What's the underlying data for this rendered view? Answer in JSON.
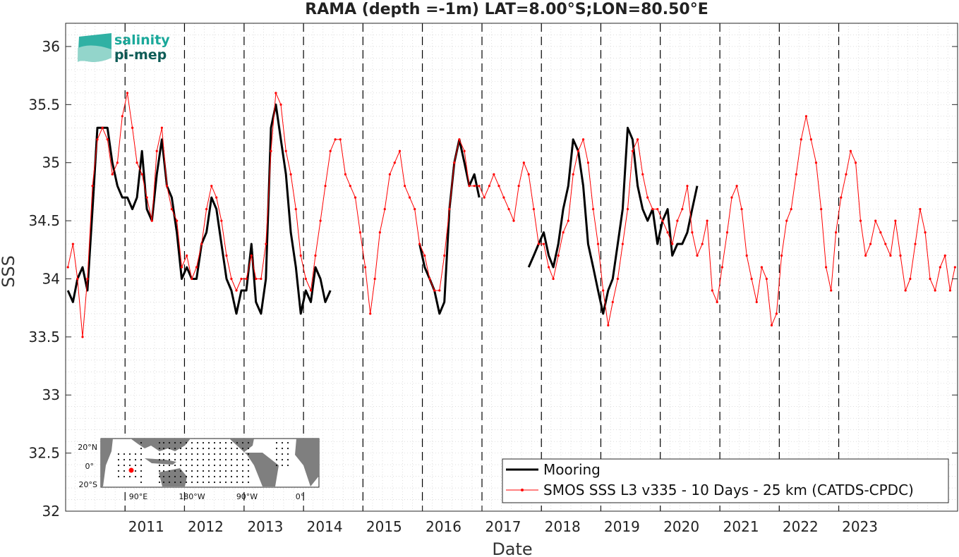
{
  "chart_data": {
    "type": "line",
    "title": "RAMA (depth =-1m) LAT=8.00°S;LON=80.50°E",
    "xlabel": "Date",
    "ylabel": "SSS",
    "xlim": [
      "2010-01-01",
      "2024-12-31"
    ],
    "ylim": [
      32,
      36.2
    ],
    "yticks": [
      "32",
      "32.5",
      "33",
      "33.5",
      "34",
      "34.5",
      "35",
      "35.5",
      "36"
    ],
    "xticks": [
      "2011",
      "2012",
      "2013",
      "2014",
      "2015",
      "2016",
      "2017",
      "2018",
      "2019",
      "2020",
      "2021",
      "2022",
      "2023"
    ],
    "year_boundaries": [
      "2011-01-01",
      "2012-01-01",
      "2013-01-01",
      "2014-01-01",
      "2015-01-01",
      "2016-01-01",
      "2017-01-01",
      "2018-01-01",
      "2019-01-01",
      "2020-01-01",
      "2021-01-01",
      "2022-01-01",
      "2023-01-01"
    ],
    "grid": "minor dotted",
    "legend_position": "bottom-right",
    "series": [
      {
        "name": "Mooring",
        "color": "#000000",
        "style": "thick line",
        "x": [
          "2010-01",
          "2010-02",
          "2010-03",
          "2010-04",
          "2010-05",
          "2010-06",
          "2010-07",
          "2010-08",
          "2010-09",
          "2010-10",
          "2010-11",
          "2010-12",
          "2011-01",
          "2011-02",
          "2011-03",
          "2011-04",
          "2011-05",
          "2011-06",
          "2011-07",
          "2011-08",
          "2011-09",
          "2011-10",
          "2011-11",
          "2011-12",
          "2012-01",
          "2012-02",
          "2012-03",
          "2012-04",
          "2012-05",
          "2012-06",
          "2012-07",
          "2012-08",
          "2012-09",
          "2012-10",
          "2012-11",
          "2012-12",
          "2013-01",
          "2013-02",
          "2013-03",
          "2013-04",
          "2013-05",
          "2013-06",
          "2013-07",
          "2013-08",
          "2013-09",
          "2013-10",
          "2013-11",
          "2013-12",
          "2014-01",
          "2014-02",
          "2014-03",
          "2014-04",
          "2014-05",
          "2014-06",
          null,
          "2015-12",
          "2016-01",
          "2016-02",
          "2016-03",
          "2016-04",
          "2016-05",
          "2016-06",
          "2016-07",
          "2016-08",
          "2016-09",
          "2016-10",
          "2016-11",
          "2016-12",
          null,
          "2017-10",
          "2017-11",
          "2017-12",
          "2018-01",
          "2018-02",
          "2018-03",
          "2018-04",
          "2018-05",
          "2018-06",
          "2018-07",
          "2018-08",
          "2018-09",
          "2018-10",
          "2018-11",
          "2018-12",
          "2019-01",
          "2019-02",
          "2019-03",
          "2019-04",
          "2019-05",
          "2019-06",
          "2019-07",
          "2019-08",
          "2019-09",
          "2019-10",
          "2019-11",
          "2019-12",
          "2020-01",
          "2020-02",
          "2020-03",
          "2020-04",
          "2020-05",
          "2020-06",
          "2020-07",
          "2020-08"
        ],
        "y": [
          33.9,
          33.8,
          34.0,
          34.1,
          33.9,
          34.6,
          35.3,
          35.3,
          35.3,
          35.0,
          34.8,
          34.7,
          34.7,
          34.6,
          34.7,
          35.1,
          34.6,
          34.5,
          34.9,
          35.2,
          34.8,
          34.7,
          34.4,
          34.0,
          34.1,
          34.0,
          34.0,
          34.3,
          34.4,
          34.7,
          34.6,
          34.3,
          34.0,
          33.9,
          33.7,
          33.9,
          33.9,
          34.3,
          33.8,
          33.7,
          34.0,
          35.3,
          35.5,
          35.2,
          34.9,
          34.4,
          34.1,
          33.7,
          33.9,
          33.8,
          34.1,
          34.0,
          33.8,
          33.9,
          null,
          34.3,
          34.1,
          34.0,
          33.9,
          33.7,
          33.8,
          34.6,
          35.0,
          35.2,
          35.0,
          34.8,
          34.9,
          34.7,
          null,
          34.1,
          34.2,
          34.3,
          34.4,
          34.2,
          34.1,
          34.3,
          34.6,
          34.8,
          35.2,
          35.1,
          34.8,
          34.3,
          34.1,
          33.9,
          33.7,
          33.9,
          34.0,
          34.3,
          34.6,
          35.3,
          35.2,
          34.8,
          34.6,
          34.5,
          34.6,
          34.3,
          34.5,
          34.6,
          34.2,
          34.3,
          34.3,
          34.4,
          34.6,
          34.8
        ]
      },
      {
        "name": "SMOS SSS L3 v335 - 10 Days - 25 km (CATDS-CPDC)",
        "color": "#ff0000",
        "style": "thin line with dot markers",
        "x": [
          "2010-01",
          "2010-02",
          "2010-03",
          "2010-04",
          "2010-05",
          "2010-06",
          "2010-07",
          "2010-08",
          "2010-09",
          "2010-10",
          "2010-11",
          "2010-12",
          "2011-01",
          "2011-02",
          "2011-03",
          "2011-04",
          "2011-05",
          "2011-06",
          "2011-07",
          "2011-08",
          "2011-09",
          "2011-10",
          "2011-11",
          "2011-12",
          "2012-01",
          "2012-02",
          "2012-03",
          "2012-04",
          "2012-05",
          "2012-06",
          "2012-07",
          "2012-08",
          "2012-09",
          "2012-10",
          "2012-11",
          "2012-12",
          "2013-01",
          "2013-02",
          "2013-03",
          "2013-04",
          "2013-05",
          "2013-06",
          "2013-07",
          "2013-08",
          "2013-09",
          "2013-10",
          "2013-11",
          "2013-12",
          "2014-01",
          "2014-02",
          "2014-03",
          "2014-04",
          "2014-05",
          "2014-06",
          "2014-07",
          "2014-08",
          "2014-09",
          "2014-10",
          "2014-11",
          "2014-12",
          "2015-01",
          "2015-02",
          "2015-03",
          "2015-04",
          "2015-05",
          "2015-06",
          "2015-07",
          "2015-08",
          "2015-09",
          "2015-10",
          "2015-11",
          "2015-12",
          "2016-01",
          "2016-02",
          "2016-03",
          "2016-04",
          "2016-05",
          "2016-06",
          "2016-07",
          "2016-08",
          "2016-09",
          "2016-10",
          "2016-11",
          "2016-12",
          "2017-01",
          "2017-02",
          "2017-03",
          "2017-04",
          "2017-05",
          "2017-06",
          "2017-07",
          "2017-08",
          "2017-09",
          "2017-10",
          "2017-11",
          "2017-12",
          "2018-01",
          "2018-02",
          "2018-03",
          "2018-04",
          "2018-05",
          "2018-06",
          "2018-07",
          "2018-08",
          "2018-09",
          "2018-10",
          "2018-11",
          "2018-12",
          "2019-01",
          "2019-02",
          "2019-03",
          "2019-04",
          "2019-05",
          "2019-06",
          "2019-07",
          "2019-08",
          "2019-09",
          "2019-10",
          "2019-11",
          "2019-12",
          "2020-01",
          "2020-02",
          "2020-03",
          "2020-04",
          "2020-05",
          "2020-06",
          "2020-07",
          "2020-08",
          "2020-09",
          "2020-10",
          "2020-11",
          "2020-12",
          "2021-01",
          "2021-02",
          "2021-03",
          "2021-04",
          "2021-05",
          "2021-06",
          "2021-07",
          "2021-08",
          "2021-09",
          "2021-10",
          "2021-11",
          "2021-12",
          "2022-01",
          "2022-02",
          "2022-03",
          "2022-04",
          "2022-05",
          "2022-06",
          "2022-07",
          "2022-08",
          "2022-09",
          "2022-10",
          "2022-11",
          "2022-12",
          "2023-01",
          "2023-02",
          "2023-03",
          "2023-04",
          "2023-05",
          "2023-06",
          "2023-07",
          "2023-08",
          "2023-09",
          "2023-10",
          "2023-11",
          "2023-12",
          "2024-01",
          "2024-02",
          "2024-03",
          "2024-04",
          "2024-05",
          "2024-06",
          "2024-07",
          "2024-08",
          "2024-09",
          "2024-10",
          "2024-11",
          "2024-12"
        ],
        "y": [
          34.1,
          34.3,
          34.0,
          33.5,
          34.0,
          34.8,
          35.2,
          35.3,
          35.2,
          34.9,
          35.0,
          35.4,
          35.6,
          35.3,
          35.0,
          34.9,
          34.7,
          34.5,
          35.1,
          35.3,
          34.8,
          34.6,
          34.5,
          34.1,
          34.2,
          34.0,
          34.1,
          34.3,
          34.6,
          34.8,
          34.7,
          34.5,
          34.2,
          34.0,
          33.9,
          34.0,
          34.0,
          34.2,
          34.0,
          34.0,
          34.3,
          35.1,
          35.6,
          35.5,
          35.1,
          34.9,
          34.6,
          34.2,
          34.0,
          33.9,
          34.2,
          34.5,
          34.8,
          35.1,
          35.2,
          35.2,
          34.9,
          34.8,
          34.7,
          34.4,
          34.1,
          33.7,
          34.0,
          34.4,
          34.6,
          34.9,
          35.0,
          35.1,
          34.8,
          34.7,
          34.6,
          34.3,
          34.2,
          34.0,
          33.9,
          33.9,
          34.2,
          34.6,
          35.0,
          35.2,
          35.1,
          34.8,
          34.8,
          34.8,
          34.7,
          34.8,
          34.9,
          34.8,
          34.7,
          34.6,
          34.5,
          34.8,
          35.0,
          34.9,
          34.6,
          34.3,
          34.3,
          34.1,
          34.0,
          34.2,
          34.4,
          34.5,
          34.9,
          35.1,
          35.2,
          35.0,
          34.6,
          34.3,
          33.9,
          33.6,
          33.8,
          34.0,
          34.3,
          34.6,
          35.1,
          35.2,
          34.9,
          34.7,
          34.6,
          34.6,
          34.5,
          34.4,
          34.3,
          34.5,
          34.6,
          34.8,
          34.4,
          34.2,
          34.3,
          34.5,
          33.9,
          33.8,
          34.1,
          34.4,
          34.7,
          34.8,
          34.6,
          34.2,
          34.0,
          33.8,
          34.1,
          34.0,
          33.6,
          33.7,
          34.2,
          34.5,
          34.6,
          34.9,
          35.2,
          35.4,
          35.2,
          35.0,
          34.6,
          34.1,
          33.9,
          34.4,
          34.7,
          34.9,
          35.1,
          35.0,
          34.5,
          34.2,
          34.3,
          34.5,
          34.4,
          34.3,
          34.2,
          34.5,
          34.2,
          33.9,
          34.0,
          34.3,
          34.6,
          34.4,
          34.0,
          33.9,
          34.1,
          34.2,
          33.9,
          34.1
        ]
      }
    ]
  },
  "legend": {
    "items": [
      {
        "label": "Mooring",
        "color": "#000000"
      },
      {
        "label": "SMOS SSS L3 v335 - 10 Days - 25 km (CATDS-CPDC)",
        "color": "#ff0000"
      }
    ]
  },
  "logo": {
    "line1": "salinity",
    "line2": "pi-mep",
    "color1": "#1aa89a",
    "color2": "#0f5c57"
  },
  "inset_map": {
    "ylabels": [
      "20°N",
      "0°",
      "20°S"
    ],
    "xlabels": [
      "90°E",
      "180°W",
      "90°W",
      "0°"
    ],
    "land_color": "#7f7f7f",
    "ocean_color": "#ffffff",
    "station_color": "#ff0000"
  }
}
